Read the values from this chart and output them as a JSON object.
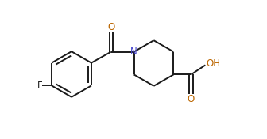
{
  "background_color": "#ffffff",
  "bond_color": "#1a1a1a",
  "N_color": "#4444cc",
  "O_color": "#bb6600",
  "F_color": "#1a1a1a",
  "line_width": 1.4,
  "figsize": [
    3.36,
    1.76
  ],
  "dpi": 100,
  "xlim": [
    0,
    8.0
  ],
  "ylim": [
    0,
    4.4
  ]
}
